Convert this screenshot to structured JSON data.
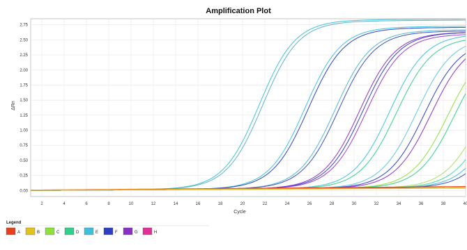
{
  "chart_data": {
    "type": "line",
    "title": "Amplification Plot",
    "xlabel": "Cycle",
    "ylabel": "ΔRn",
    "xlim": [
      1,
      40
    ],
    "ylim": [
      -0.1,
      2.85
    ],
    "x_ticks": [
      "2",
      "4",
      "6",
      "8",
      "10",
      "12",
      "14",
      "16",
      "18",
      "20",
      "22",
      "24",
      "26",
      "28",
      "30",
      "32",
      "34",
      "36",
      "38",
      "40"
    ],
    "y_ticks": [
      "0.00",
      "0.25",
      "0.50",
      "0.75",
      "1.00",
      "1.25",
      "1.50",
      "1.75",
      "2.00",
      "2.25",
      "2.50",
      "2.75"
    ],
    "y_tick_values": [
      0,
      0.25,
      0.5,
      0.75,
      1.0,
      1.25,
      1.5,
      1.75,
      2.0,
      2.25,
      2.5,
      2.75
    ],
    "grid": true,
    "legend_title": "Legend",
    "legend": [
      {
        "label": "A",
        "color": "#e8401c"
      },
      {
        "label": "B",
        "color": "#e3c21a"
      },
      {
        "label": "C",
        "color": "#8fe03a"
      },
      {
        "label": "D",
        "color": "#2fd08a"
      },
      {
        "label": "E",
        "color": "#3cc2d8"
      },
      {
        "label": "F",
        "color": "#2a3fc4"
      },
      {
        "label": "G",
        "color": "#8a2fc4"
      },
      {
        "label": "H",
        "color": "#e0309a"
      }
    ],
    "series": [
      {
        "well": "E",
        "color": "#3cc2d8",
        "plateau": 2.8,
        "midpoint": 21.5,
        "slope": 0.62
      },
      {
        "well": "E",
        "color": "#5fb0c8",
        "plateau": 2.78,
        "midpoint": 21.8,
        "slope": 0.62
      },
      {
        "well": "E",
        "color": "#3cc2d8",
        "plateau": 2.68,
        "midpoint": 25.6,
        "slope": 0.62
      },
      {
        "well": "F",
        "color": "#2a3fc4",
        "plateau": 2.66,
        "midpoint": 25.9,
        "slope": 0.62
      },
      {
        "well": "E",
        "color": "#4fb8d0",
        "plateau": 2.62,
        "midpoint": 28.3,
        "slope": 0.62
      },
      {
        "well": "F",
        "color": "#3a4cc8",
        "plateau": 2.6,
        "midpoint": 28.6,
        "slope": 0.62
      },
      {
        "well": "G",
        "color": "#8a2fc4",
        "plateau": 2.58,
        "midpoint": 30.5,
        "slope": 0.62
      },
      {
        "well": "F",
        "color": "#2a3fc4",
        "plateau": 2.58,
        "midpoint": 30.8,
        "slope": 0.62
      },
      {
        "well": "G",
        "color": "#9a3ad0",
        "plateau": 2.55,
        "midpoint": 31.1,
        "slope": 0.62
      },
      {
        "well": "E",
        "color": "#3cc2d8",
        "plateau": 2.55,
        "midpoint": 33.2,
        "slope": 0.62
      },
      {
        "well": "D",
        "color": "#2fd08a",
        "plateau": 2.5,
        "midpoint": 33.8,
        "slope": 0.62
      },
      {
        "well": "E",
        "color": "#5ec8da",
        "plateau": 2.5,
        "midpoint": 35.6,
        "slope": 0.62
      },
      {
        "well": "F",
        "color": "#2a3fc4",
        "plateau": 2.45,
        "midpoint": 36.3,
        "slope": 0.62
      },
      {
        "well": "G",
        "color": "#8a2fc4",
        "plateau": 2.45,
        "midpoint": 36.9,
        "slope": 0.62
      },
      {
        "well": "C",
        "color": "#8fe03a",
        "plateau": 2.4,
        "midpoint": 38.4,
        "slope": 0.62
      },
      {
        "well": "D",
        "color": "#2fd08a",
        "plateau": 2.4,
        "midpoint": 39.0,
        "slope": 0.62
      },
      {
        "well": "C",
        "color": "#a8e060",
        "plateau": 2.4,
        "midpoint": 41.5,
        "slope": 0.62
      },
      {
        "well": "D",
        "color": "#44d6a0",
        "plateau": 2.4,
        "midpoint": 42.3,
        "slope": 0.62
      },
      {
        "well": "E",
        "color": "#3cc2d8",
        "plateau": 2.4,
        "midpoint": 43.0,
        "slope": 0.62
      },
      {
        "well": "F",
        "color": "#3a4cc8",
        "plateau": 2.4,
        "midpoint": 43.6,
        "slope": 0.62
      },
      {
        "well": "A",
        "color": "#e8401c",
        "plateau": 0.0,
        "midpoint": 60,
        "slope": 0.5
      },
      {
        "well": "B",
        "color": "#e3c21a",
        "plateau": 0.0,
        "midpoint": 60,
        "slope": 0.5
      }
    ]
  }
}
